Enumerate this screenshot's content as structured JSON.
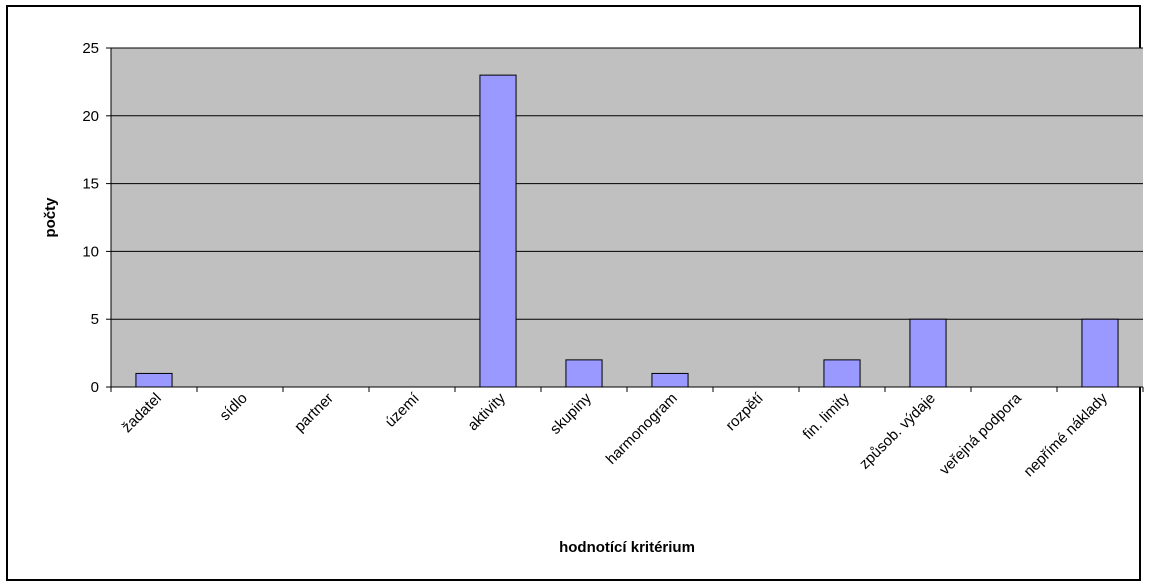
{
  "chart_data": {
    "type": "bar",
    "title": "",
    "xlabel": "hodnotící kritérium",
    "ylabel": "počty",
    "categories": [
      "žadatel",
      "sídlo",
      "partner",
      "území",
      "aktivity",
      "skupiny",
      "harmonogram",
      "rozpětí",
      "fin. limity",
      "způsob. výdaje",
      "veřejná podpora",
      "nepřímé náklady"
    ],
    "values": [
      1,
      0,
      0,
      0,
      23,
      2,
      1,
      0,
      2,
      5,
      0,
      5
    ],
    "ylim": [
      0,
      25
    ],
    "yticks": [
      0,
      5,
      10,
      15,
      20,
      25
    ],
    "grid": true,
    "legend": "none",
    "colors": {
      "plot_bg": "#c0c0c0",
      "bar_fill": "#9999ff",
      "bar_stroke": "#000000",
      "grid": "#000000"
    }
  }
}
